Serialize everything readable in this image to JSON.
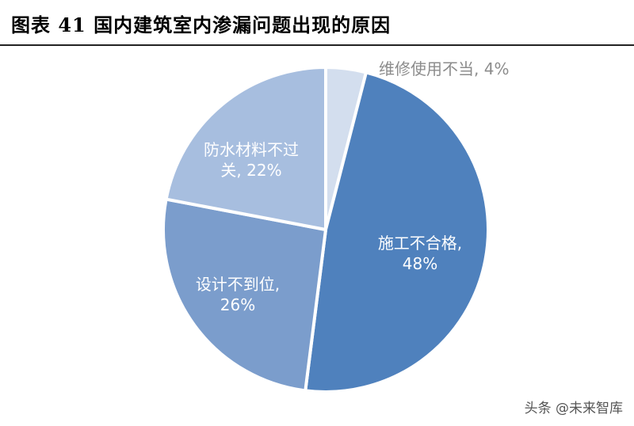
{
  "chart_data": {
    "type": "pie",
    "title": "图表 41 国内建筑室内渗漏问题出现的原因",
    "categories": [
      "维修使用不当,",
      "施工不合格,",
      "设计不到位,",
      "防水材料不过关,"
    ],
    "values": [
      4,
      48,
      26,
      22
    ],
    "value_labels": [
      "4%",
      "48%",
      "26%",
      "22%"
    ],
    "colors": [
      "#d3deee",
      "#4f81bd",
      "#7b9dcc",
      "#a7bedf"
    ],
    "watermark": "头条 @未来智库"
  }
}
